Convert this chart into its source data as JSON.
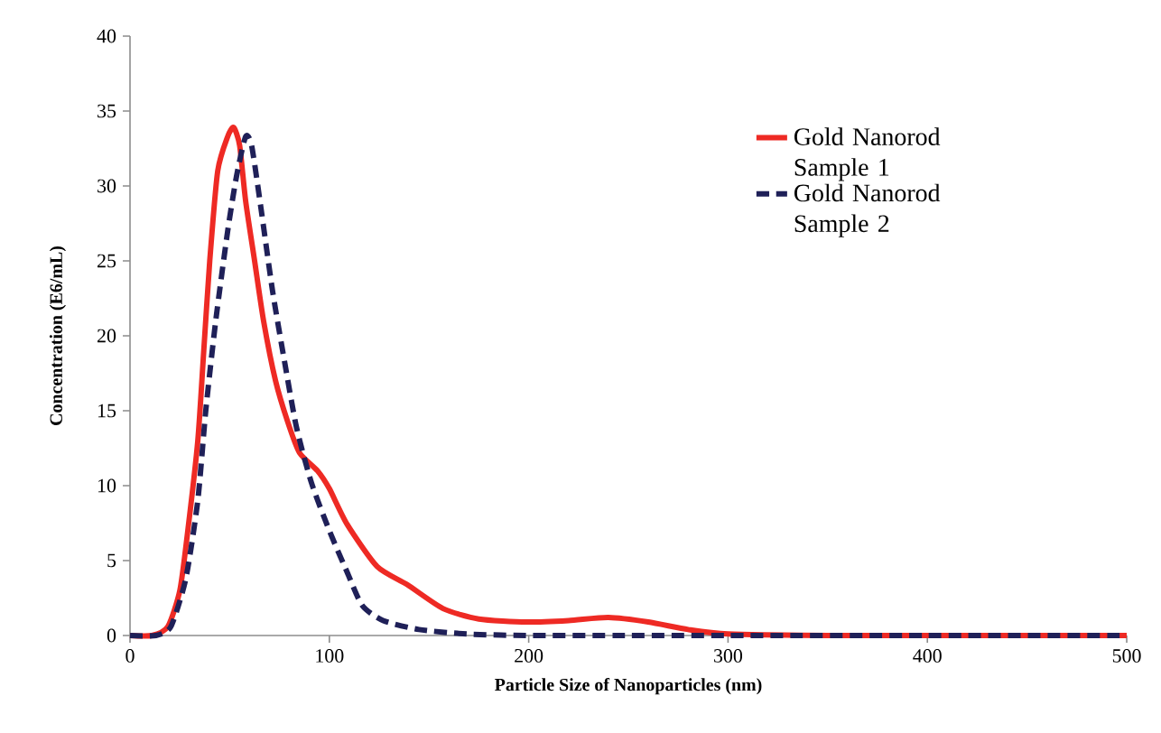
{
  "chart_data": {
    "type": "line",
    "xlabel": "Particle Size of Nanoparticles (nm)",
    "ylabel": "Concentration (E6/mL)",
    "xlim": [
      0,
      500
    ],
    "ylim": [
      0,
      40
    ],
    "xticks": [
      0,
      100,
      200,
      300,
      400,
      500
    ],
    "yticks": [
      0,
      5,
      10,
      15,
      20,
      25,
      30,
      35,
      40
    ],
    "grid": false,
    "legend": "top right",
    "marker": "none",
    "series": [
      {
        "name": "Gold Nanorod Sample 1",
        "color": "#ee2a24",
        "line_style": "solid",
        "x": [
          0,
          11,
          19,
          25,
          29,
          34,
          37,
          40,
          44,
          49,
          52,
          55,
          58,
          62.5,
          67,
          73,
          79,
          85,
          94,
          100,
          109,
          124,
          139,
          157,
          175,
          199,
          220,
          240,
          260,
          280,
          300,
          350,
          400,
          450,
          500
        ],
        "values": [
          0,
          0,
          0.6,
          3,
          7,
          13,
          19,
          25,
          31,
          33.3,
          33.9,
          32.7,
          29,
          25,
          21,
          17,
          14.3,
          12.2,
          11,
          9.8,
          7.4,
          4.6,
          3.4,
          1.8,
          1.1,
          0.9,
          1.0,
          1.2,
          0.9,
          0.4,
          0.1,
          0,
          0,
          0,
          0
        ]
      },
      {
        "name": "Gold Nanorod Sample 2",
        "color": "#1f2058",
        "line_style": "dashed",
        "x": [
          0,
          13,
          20.5,
          28,
          34,
          38,
          43,
          49,
          53.5,
          58,
          61,
          65.5,
          71.5,
          77.5,
          83.5,
          91,
          100,
          109,
          116.5,
          127,
          145,
          169,
          199,
          250,
          300,
          400,
          500
        ],
        "values": [
          0,
          0,
          0.6,
          3.8,
          9,
          15,
          21,
          27,
          30.7,
          33.3,
          32.7,
          28.7,
          23,
          18.3,
          13.9,
          10.2,
          7,
          4.2,
          2,
          1,
          0.4,
          0.1,
          0,
          0,
          0,
          0,
          0
        ]
      }
    ]
  }
}
